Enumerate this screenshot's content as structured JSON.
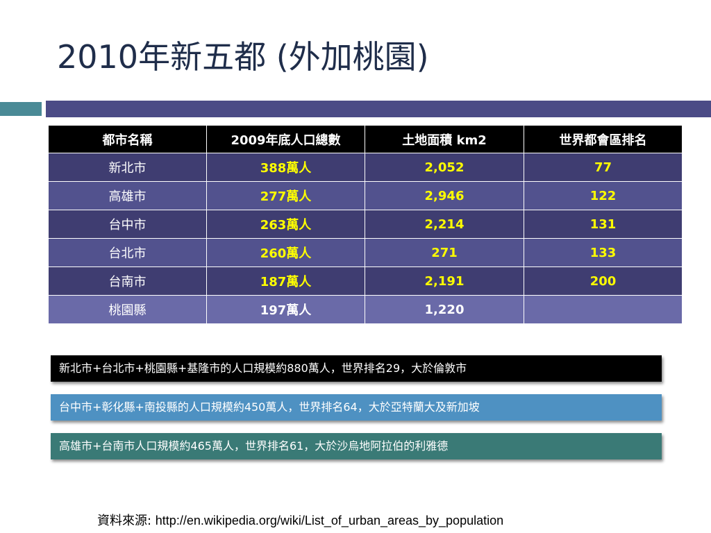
{
  "title": "2010年新五都 (外加桃園)",
  "colors": {
    "title": "#1f2d4a",
    "accent_teal": "#4a8a96",
    "accent_indigo": "#4b4b86",
    "table_header_bg": "#000000",
    "row_dark": "#3f3d71",
    "row_light": "#52528e",
    "value_yellow": "#ffff00",
    "note_1_bg": "#000000",
    "note_2_bg": "#4e91c2",
    "note_3_bg": "#3a7a76"
  },
  "table": {
    "headers": [
      "都市名稱",
      "2009年底人口總數",
      "土地面積 km2",
      "世界都會區排名"
    ],
    "rows": [
      {
        "name": "新北市",
        "population": "388萬人",
        "area": "2,052",
        "rank": "77"
      },
      {
        "name": "高雄市",
        "population": "277萬人",
        "area": "2,946",
        "rank": "122"
      },
      {
        "name": "台中市",
        "population": "263萬人",
        "area": "2,214",
        "rank": "131"
      },
      {
        "name": "台北市",
        "population": "260萬人",
        "area": "271",
        "rank": "133"
      },
      {
        "name": "台南市",
        "population": "187萬人",
        "area": "2,191",
        "rank": "200"
      },
      {
        "name": "桃園縣",
        "population": "197萬人",
        "area": "1,220",
        "rank": ""
      }
    ]
  },
  "notes": [
    "新北市+台北市+桃園縣+基隆市的人口規模約880萬人，世界排名29，大於倫敦市",
    "台中市+彰化縣+南投縣的人口規模約450萬人，世界排名64，大於亞特蘭大及新加坡",
    "高雄市+台南市人口規模約465萬人，世界排名61，大於沙烏地阿拉伯的利雅德"
  ],
  "source": {
    "label": "資料來源",
    "separator": ": ",
    "url": "http://en.wikipedia.org/wiki/List_of_urban_areas_by_population"
  }
}
